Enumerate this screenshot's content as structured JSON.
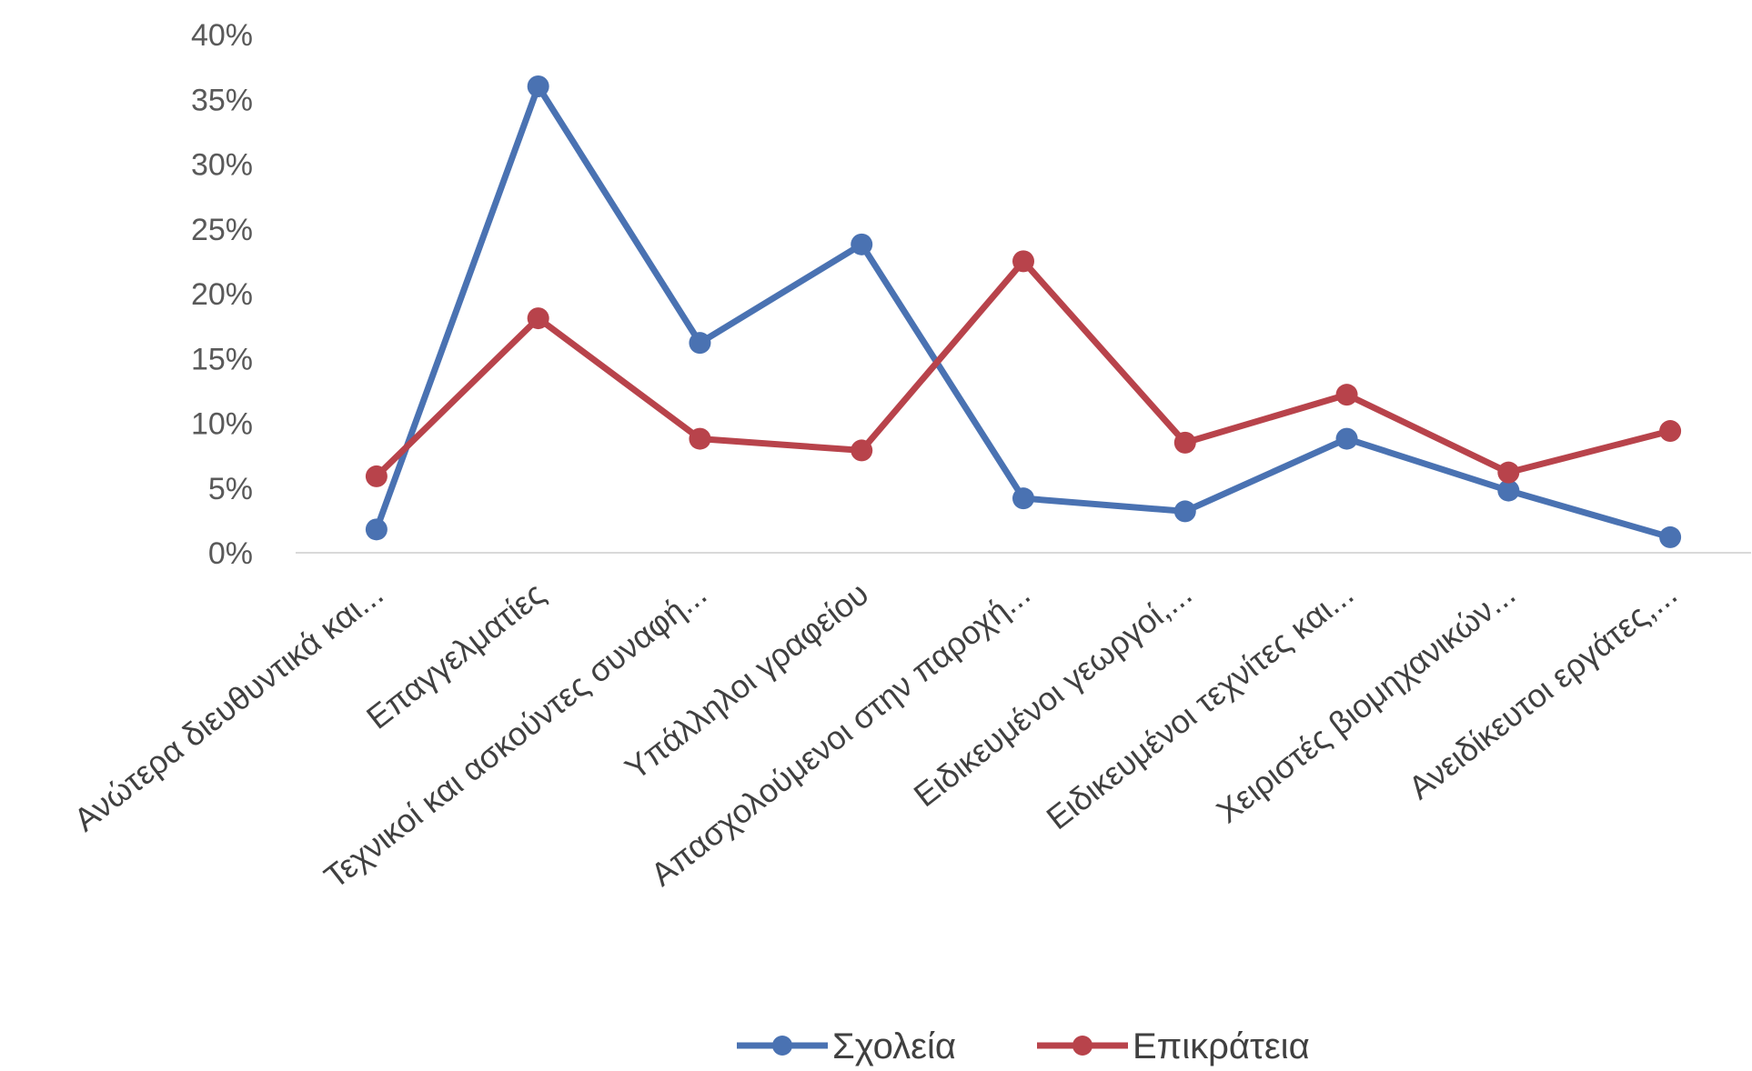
{
  "chart_data": {
    "type": "line",
    "categories": [
      "Ανώτερα διευθυντικά και...",
      "Επαγγελματίες",
      "Τεχνικοί και ασκούντες συναφή...",
      "Υπάλληλοι γραφείου",
      "Απασχολούμενοι στην παροχή...",
      "Ειδικευμένοι γεωργοί,...",
      "Ειδικευμένοι τεχνίτες και...",
      "Χειριστές βιομηχανικών...",
      "Ανειδίκευτοι εργάτες,..."
    ],
    "series": [
      {
        "name": "Σχολεία",
        "color": "#4A72B2",
        "values": [
          1.8,
          36.0,
          16.2,
          23.8,
          4.2,
          3.2,
          8.8,
          4.8,
          1.2
        ]
      },
      {
        "name": "Επικράτεια",
        "color": "#B8434B",
        "values": [
          5.9,
          18.1,
          8.8,
          7.9,
          22.5,
          8.5,
          12.2,
          6.2,
          9.4
        ]
      }
    ],
    "yticks": [
      "0%",
      "5%",
      "10%",
      "15%",
      "20%",
      "25%",
      "30%",
      "35%",
      "40%"
    ],
    "ylim": [
      0,
      40
    ],
    "grid": false,
    "legend_position": "bottom"
  }
}
